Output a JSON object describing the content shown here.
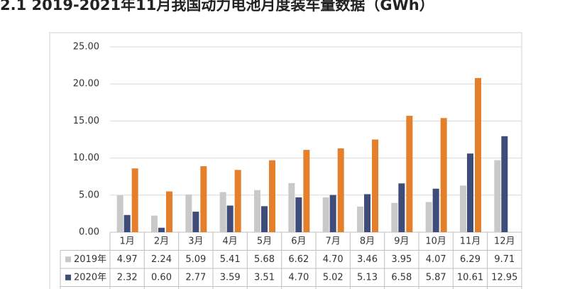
{
  "chart_data": {
    "type": "bar",
    "title": "2.1 2019-2021年11月我国动力电池月度装车量数据（GWh）",
    "categories": [
      "1月",
      "2月",
      "3月",
      "4月",
      "5月",
      "6月",
      "7月",
      "8月",
      "9月",
      "10月",
      "11月",
      "12月"
    ],
    "series": [
      {
        "name": "2019年",
        "color": "#c9c9c9",
        "values": [
          4.97,
          2.24,
          5.09,
          5.41,
          5.68,
          6.62,
          4.7,
          3.46,
          3.95,
          4.07,
          6.29,
          9.71
        ],
        "value_labels": [
          "4.97",
          "2.24",
          "5.09",
          "5.41",
          "5.68",
          "6.62",
          "4.70",
          "3.46",
          "3.95",
          "4.07",
          "6.29",
          "9.71"
        ]
      },
      {
        "name": "2020年",
        "color": "#3f4c7a",
        "values": [
          2.32,
          0.6,
          2.77,
          3.59,
          3.51,
          4.7,
          5.02,
          5.13,
          6.58,
          5.87,
          10.61,
          12.95
        ],
        "value_labels": [
          "2.32",
          "0.60",
          "2.77",
          "3.59",
          "3.51",
          "4.70",
          "5.02",
          "5.13",
          "6.58",
          "5.87",
          "10.61",
          "12.95"
        ]
      },
      {
        "color": "#e47f2b",
        "values": [
          8.6,
          5.5,
          8.9,
          8.4,
          9.7,
          11.1,
          11.3,
          12.5,
          15.7,
          15.4,
          20.8,
          null
        ]
      }
    ],
    "ylim": [
      0,
      25
    ],
    "yticks": [
      {
        "value": 0,
        "label": "0.00"
      },
      {
        "value": 5,
        "label": "5.00"
      },
      {
        "value": 10,
        "label": "10.00"
      },
      {
        "value": 15,
        "label": "15.00"
      },
      {
        "value": 20,
        "label": "20.00"
      },
      {
        "value": 25,
        "label": "25.00"
      }
    ],
    "grid": true
  }
}
